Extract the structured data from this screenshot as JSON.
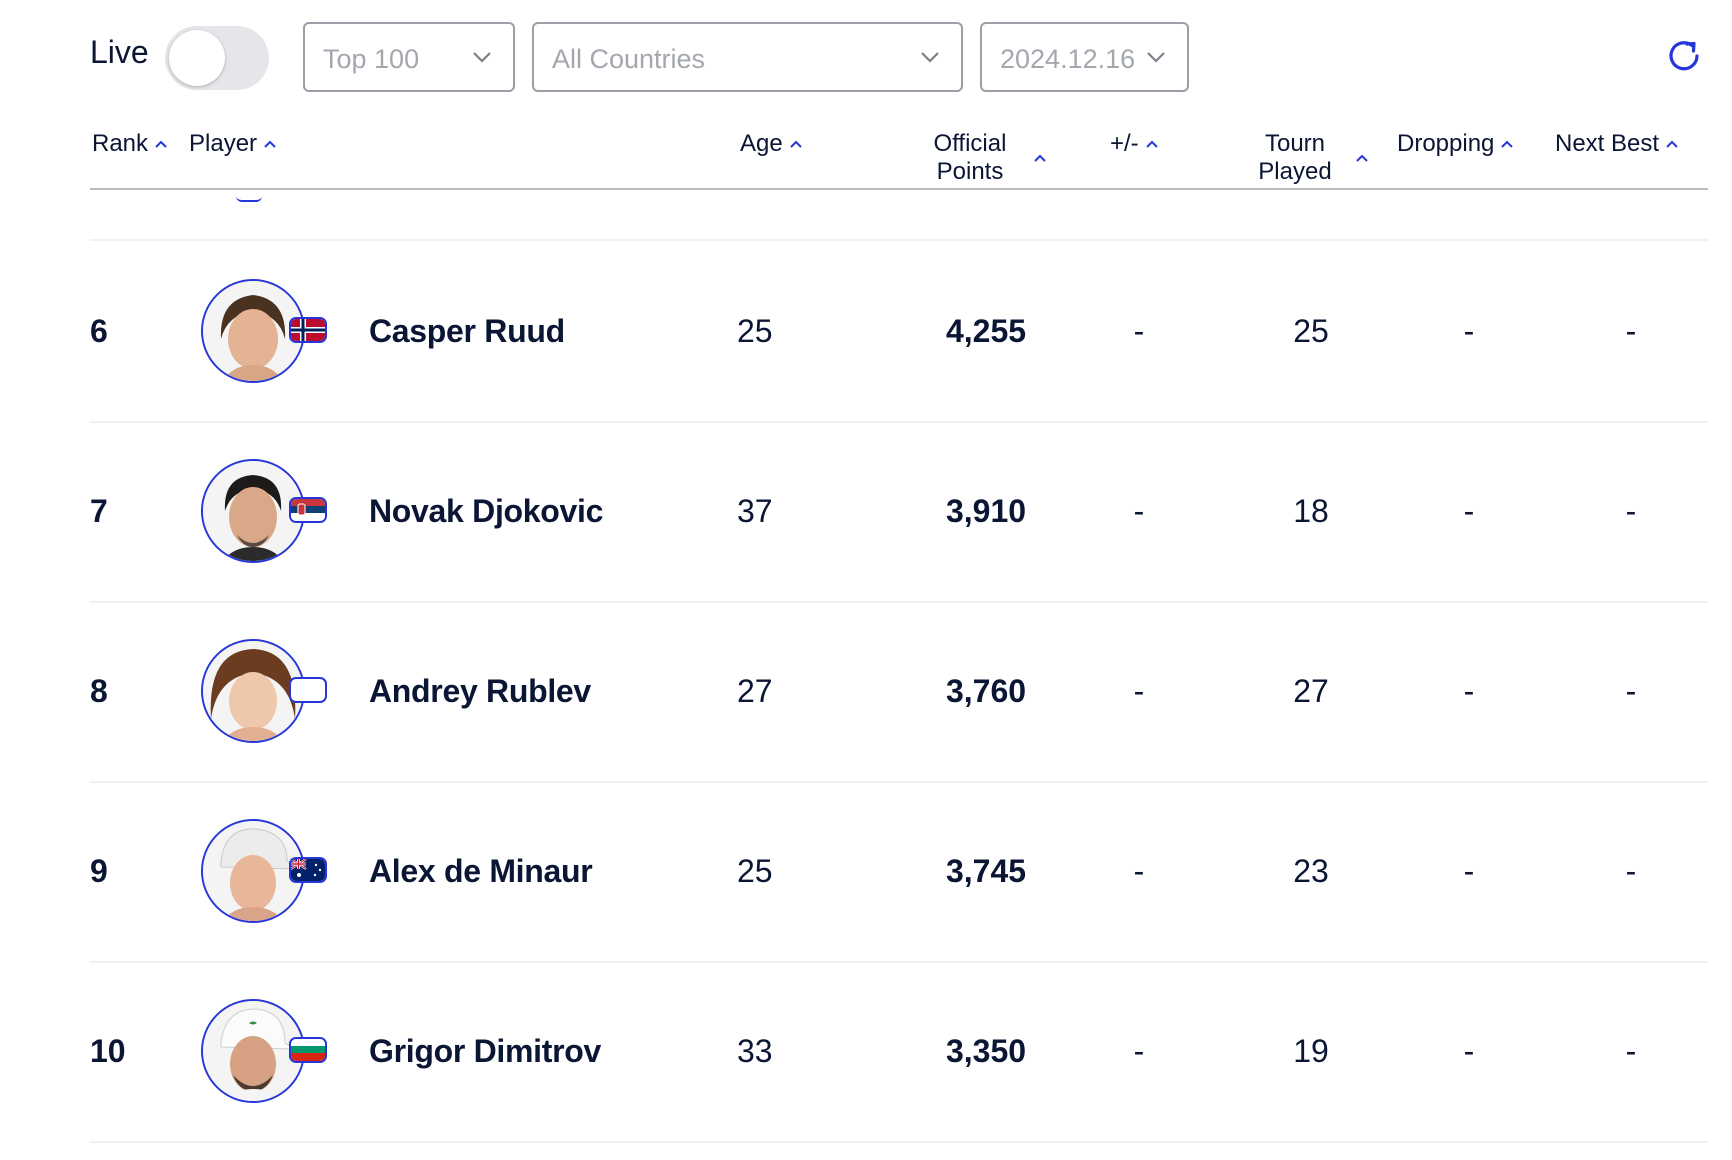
{
  "live": {
    "label": "Live",
    "enabled": false
  },
  "filters": {
    "range": "Top 100",
    "country": "All Countries",
    "date": "2024.12.16"
  },
  "columns": {
    "rank": "Rank",
    "player": "Player",
    "age": "Age",
    "official_line1": "Official",
    "official_line2": "Points",
    "plusminus": "+/-",
    "tourn_line1": "Tourn",
    "tourn_line2": "Played",
    "dropping": "Dropping",
    "next_best": "Next Best"
  },
  "rows": [
    {
      "rank": "6",
      "name": "Casper Ruud",
      "age": "25",
      "points": "4,255",
      "plusminus": "-",
      "played": "25",
      "dropping": "-",
      "next_best": "-",
      "flag": "norway"
    },
    {
      "rank": "7",
      "name": "Novak Djokovic",
      "age": "37",
      "points": "3,910",
      "plusminus": "-",
      "played": "18",
      "dropping": "-",
      "next_best": "-",
      "flag": "serbia"
    },
    {
      "rank": "8",
      "name": "Andrey Rublev",
      "age": "27",
      "points": "3,760",
      "plusminus": "-",
      "played": "27",
      "dropping": "-",
      "next_best": "-",
      "flag": "none"
    },
    {
      "rank": "9",
      "name": "Alex de Minaur",
      "age": "25",
      "points": "3,745",
      "plusminus": "-",
      "played": "23",
      "dropping": "-",
      "next_best": "-",
      "flag": "australia"
    },
    {
      "rank": "10",
      "name": "Grigor Dimitrov",
      "age": "33",
      "points": "3,350",
      "plusminus": "-",
      "played": "19",
      "dropping": "-",
      "next_best": "-",
      "flag": "bulgaria"
    }
  ],
  "colors": {
    "accent": "#2537d8",
    "text": "#0b1534",
    "muted": "#a3a7ae"
  },
  "icons": {
    "sort": "chevron-up-icon",
    "dropdown": "chevron-down-icon",
    "refresh": "refresh-icon"
  }
}
